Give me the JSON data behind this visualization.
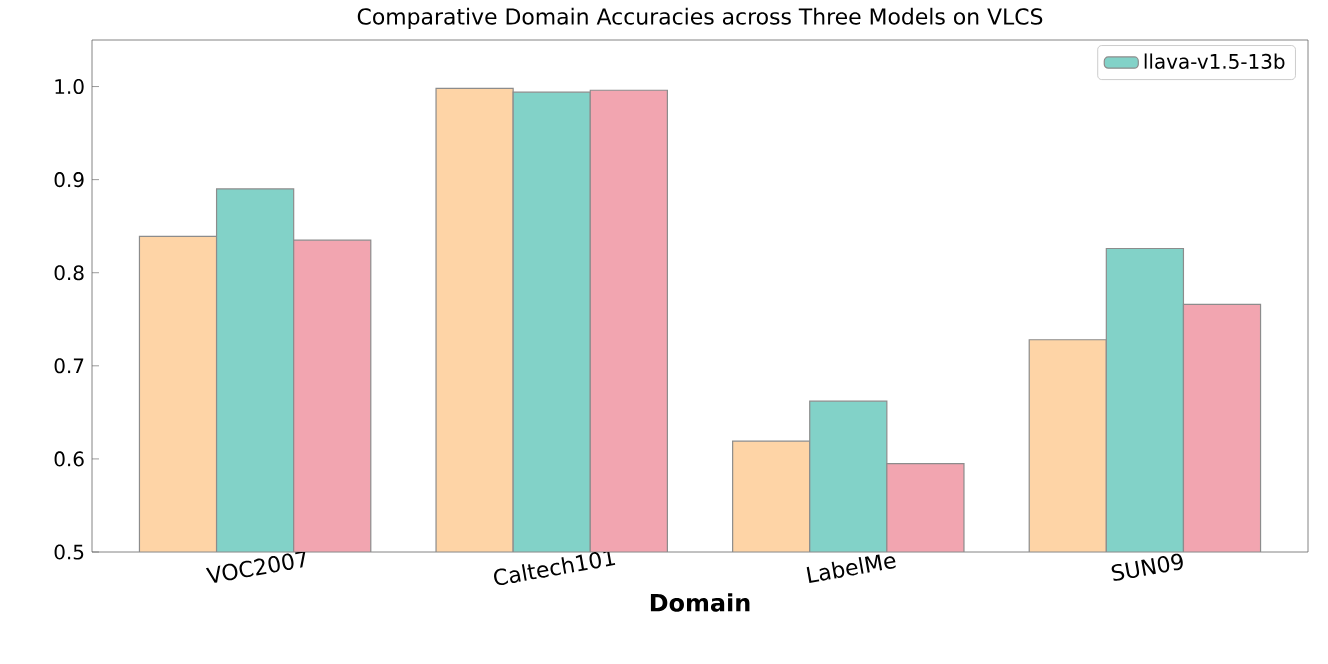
{
  "chart_data": {
    "type": "bar",
    "title": "Comparative Domain Accuracies across Three Models on VLCS",
    "xlabel": "**Domain**",
    "categories": [
      "VOC2007",
      "Caltech101",
      "LabelMe",
      "SUN09"
    ],
    "series": [
      {
        "color": "#fed4a6",
        "values": [
          0.839,
          0.998,
          0.619,
          0.728
        ]
      },
      {
        "name": "llava-v1.5-13b",
        "color": "#82d2c8",
        "values": [
          0.89,
          0.994,
          0.662,
          0.826
        ]
      },
      {
        "color": "#f2a5b0",
        "values": [
          0.835,
          0.996,
          0.595,
          0.766
        ]
      }
    ],
    "ylim": [
      0.5,
      1.05
    ],
    "yticks": [
      {
        "value": 0.5,
        "label": "0.5"
      },
      {
        "value": 0.6,
        "label": "0.6"
      },
      {
        "value": 0.7,
        "label": "0.7"
      },
      {
        "value": 0.8,
        "label": "0.8"
      },
      {
        "value": 0.9,
        "label": "0.9"
      },
      {
        "value": 1.0,
        "label": "1.0"
      }
    ],
    "legend": "top right"
  }
}
